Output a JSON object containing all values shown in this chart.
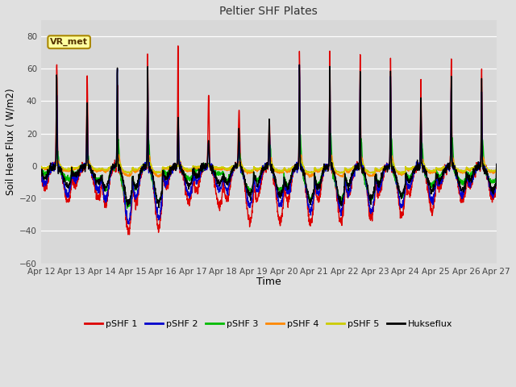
{
  "title": "Peltier SHF Plates",
  "xlabel": "Time",
  "ylabel": "Soil Heat Flux ( W/m2)",
  "ylim": [
    -60,
    90
  ],
  "yticks": [
    -60,
    -40,
    -20,
    0,
    20,
    40,
    60,
    80
  ],
  "xtick_labels": [
    "Apr 12",
    "Apr 13",
    "Apr 14",
    "Apr 15",
    "Apr 16",
    "Apr 17",
    "Apr 18",
    "Apr 19",
    "Apr 20",
    "Apr 21",
    "Apr 22",
    "Apr 23",
    "Apr 24",
    "Apr 25",
    "Apr 26",
    "Apr 27"
  ],
  "annotation_text": "VR_met",
  "series_colors": {
    "pSHF 1": "#DD0000",
    "pSHF 2": "#0000CC",
    "pSHF 3": "#00BB00",
    "pSHF 4": "#FF8800",
    "pSHF 5": "#CCCC00",
    "Hukseflux": "#000000"
  },
  "fig_bg": "#E0E0E0",
  "plot_bg": "#D8D8D8",
  "grid_color": "#FFFFFF",
  "n_days": 15,
  "ppd": 144,
  "seed": 7
}
